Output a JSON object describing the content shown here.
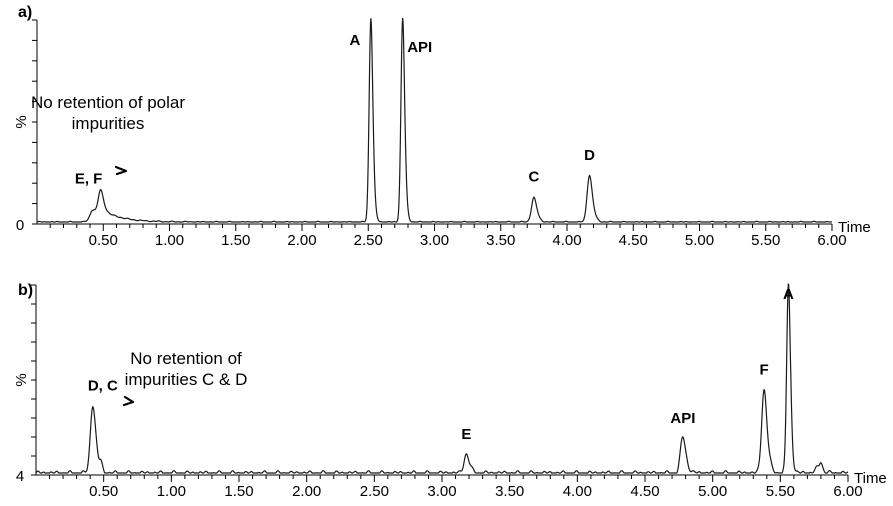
{
  "chart_data": [
    {
      "type": "line",
      "panel_label": "a)",
      "xlabel": "Time",
      "ylabel": "%",
      "y_zero_label": "0",
      "xlim": [
        0.0,
        6.0
      ],
      "ylim": [
        0,
        100
      ],
      "x_ticks": [
        "0.50",
        "1.00",
        "1.50",
        "2.00",
        "2.50",
        "3.00",
        "3.50",
        "4.00",
        "4.50",
        "5.00",
        "5.50",
        "6.00"
      ],
      "annotation": "No retention of polar\nimpurities",
      "peaks": [
        {
          "label": "E, F",
          "x": 0.48,
          "height": 12
        },
        {
          "label": "A",
          "x": 2.52,
          "height": 100
        },
        {
          "label": "API",
          "x": 2.76,
          "height": 100
        },
        {
          "label": "C",
          "x": 3.75,
          "height": 12
        },
        {
          "label": "D",
          "x": 4.17,
          "height": 23
        }
      ]
    },
    {
      "type": "line",
      "panel_label": "b)",
      "xlabel": "Time",
      "ylabel": "%",
      "y_zero_label": "4",
      "xlim": [
        0.0,
        6.0
      ],
      "ylim": [
        0,
        100
      ],
      "x_ticks": [
        "0.50",
        "1.00",
        "1.50",
        "2.00",
        "2.50",
        "3.00",
        "3.50",
        "4.00",
        "4.50",
        "5.00",
        "5.50",
        "6.00"
      ],
      "annotation": "No retention of\nimpurities C & D",
      "peaks": [
        {
          "label": "D, C",
          "x": 0.42,
          "height": 36
        },
        {
          "label": "E",
          "x": 3.18,
          "height": 10
        },
        {
          "label": "API",
          "x": 4.78,
          "height": 19
        },
        {
          "label": "F",
          "x": 5.38,
          "height": 44
        },
        {
          "label": "A",
          "x": 5.56,
          "height": 100
        }
      ]
    }
  ]
}
